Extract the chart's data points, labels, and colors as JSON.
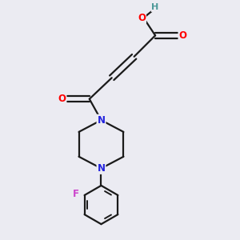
{
  "background_color": "#ebebf2",
  "bond_color": "#1a1a1a",
  "atom_colors": {
    "O": "#ff0000",
    "N": "#2222dd",
    "F": "#cc44cc",
    "H": "#4d9999",
    "C": "#1a1a1a"
  },
  "figsize": [
    3.0,
    3.0
  ],
  "dpi": 100
}
